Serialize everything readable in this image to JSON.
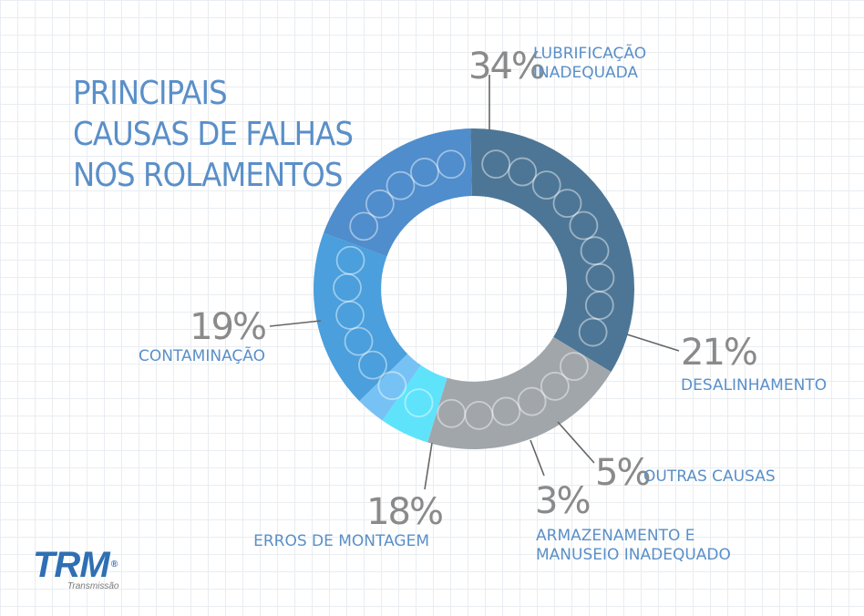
{
  "title_lines": [
    "PRINCIPAIS",
    "CAUSAS DE FALHAS",
    "NOS ROLAMENTOS"
  ],
  "chart_data": {
    "type": "pie",
    "categories": [
      "LUBRIFICAÇÃO INADEQUADA",
      "DESALINHAMENTO",
      "OUTRAS CAUSAS",
      "ARMAZENAMENTO E MANUSEIO INADEQUADO",
      "ERROS DE MONTAGEM",
      "CONTAMINAÇÃO"
    ],
    "values": [
      34,
      21,
      5,
      3,
      18,
      19
    ],
    "value_labels": [
      "34%",
      "21%",
      "5%",
      "3%",
      "18%",
      "19%"
    ],
    "label_lines": [
      [
        "LUBRIFICAÇÃO",
        "INADEQUADA"
      ],
      [
        "DESALINHAMENTO"
      ],
      [
        "OUTRAS CAUSAS"
      ],
      [
        "ARMAZENAMENTO E",
        "MANUSEIO INADEQUADO"
      ],
      [
        "ERROS DE MONTAGEM"
      ],
      [
        "CONTAMINAÇÃO"
      ]
    ],
    "colors": [
      "#4d7696",
      "#a1a6ab",
      "#5fe3fb",
      "#77c2f5",
      "#4a9fdc",
      "#4f8dcc"
    ],
    "donut": true
  },
  "colors": {
    "title": "#5a8fc8",
    "percent": "#8a8a8a",
    "label": "#5a8fc8",
    "logo": "#2f6fb4"
  },
  "logo": {
    "name": "TRM",
    "registered": "®",
    "subtitle": "Transmissão"
  }
}
